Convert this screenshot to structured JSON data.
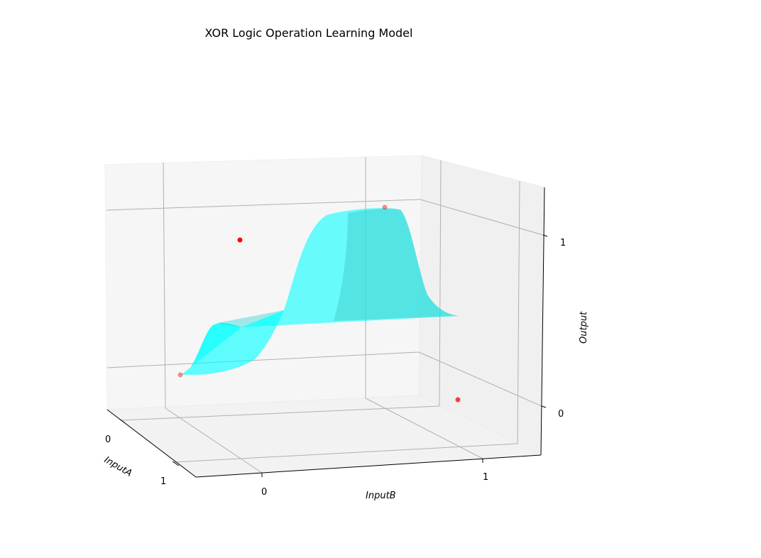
{
  "chart_data": {
    "type": "surface3d",
    "title": "XOR Logic Operation Learning Model",
    "xlabel": "InputA",
    "ylabel": "InputB",
    "zlabel": "Output",
    "x_ticks": [
      "0",
      "1"
    ],
    "y_ticks": [
      "0",
      "1"
    ],
    "z_ticks": [
      "0",
      "1"
    ],
    "grid": true,
    "series": [
      {
        "kind": "scatter",
        "color": "#ff0000",
        "points": [
          {
            "InputA": 0,
            "InputB": 0,
            "Output": 0
          },
          {
            "InputA": 0,
            "InputB": 1,
            "Output": 1
          },
          {
            "InputA": 1,
            "InputB": 0,
            "Output": 1
          },
          {
            "InputA": 1,
            "InputB": 1,
            "Output": 0
          }
        ]
      },
      {
        "kind": "surface",
        "color": "#00ffff",
        "description_function": "learned XOR approximation surface"
      }
    ]
  }
}
